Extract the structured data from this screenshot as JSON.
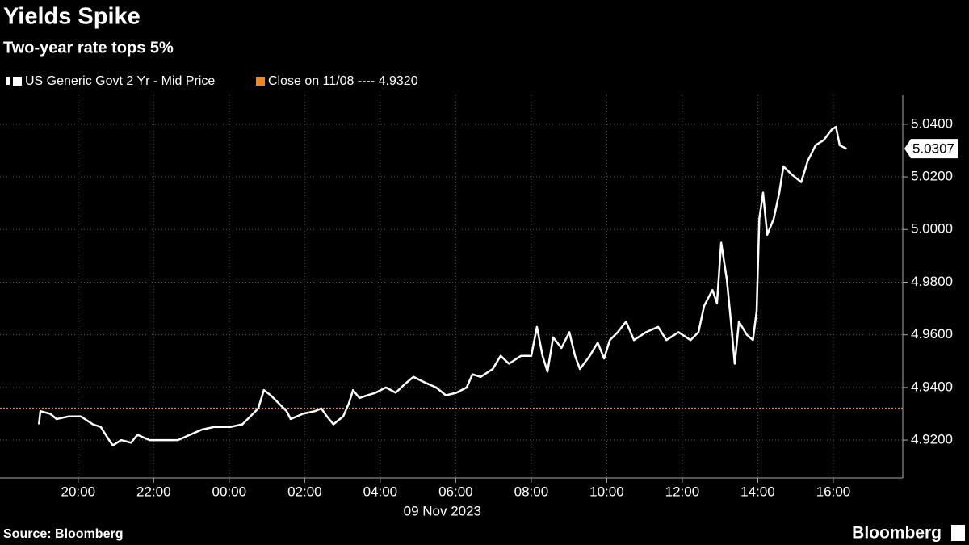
{
  "chart_data": {
    "type": "line",
    "title": "Yields Spike",
    "subtitle": "Two-year rate tops 5%",
    "date_label": "09 Nov 2023",
    "source": "Source: Bloomberg",
    "brand": "Bloomberg",
    "x": [
      18.96,
      19.0,
      19.26,
      19.43,
      19.75,
      20.07,
      20.39,
      20.6,
      20.82,
      20.92,
      21.14,
      21.4,
      21.57,
      21.89,
      22.21,
      22.64,
      22.96,
      23.28,
      23.6,
      24.03,
      24.35,
      24.56,
      24.77,
      24.92,
      25.1,
      25.31,
      25.52,
      25.63,
      25.95,
      26.27,
      26.44,
      26.59,
      26.76,
      27.02,
      27.17,
      27.28,
      27.45,
      27.66,
      27.88,
      28.15,
      28.41,
      28.63,
      28.88,
      29.16,
      29.48,
      29.74,
      30.02,
      30.29,
      30.44,
      30.66,
      30.98,
      31.19,
      31.41,
      31.73,
      32.0,
      32.15,
      32.3,
      32.43,
      32.58,
      32.8,
      33.01,
      33.16,
      33.29,
      33.55,
      33.76,
      33.93,
      34.08,
      34.29,
      34.51,
      34.72,
      35.04,
      35.36,
      35.58,
      35.9,
      36.22,
      36.43,
      36.58,
      36.8,
      36.92,
      37.03,
      37.18,
      37.29,
      37.39,
      37.5,
      37.71,
      37.87,
      37.97,
      38.04,
      38.14,
      38.25,
      38.42,
      38.57,
      38.68,
      38.89,
      39.15,
      39.32,
      39.53,
      39.75,
      39.96,
      40.07,
      40.17,
      40.35
    ],
    "series": [
      {
        "name": "US Generic Govt 2 Yr - Mid Price",
        "color": "#ffffff",
        "values": [
          4.926,
          4.931,
          4.93,
          4.928,
          4.929,
          4.929,
          4.926,
          4.925,
          4.92,
          4.918,
          4.92,
          4.919,
          4.922,
          4.92,
          4.92,
          4.92,
          4.922,
          4.924,
          4.925,
          4.925,
          4.926,
          4.929,
          4.932,
          4.939,
          4.937,
          4.934,
          4.931,
          4.928,
          4.93,
          4.931,
          4.932,
          4.929,
          4.926,
          4.929,
          4.934,
          4.939,
          4.936,
          4.937,
          4.938,
          4.94,
          4.938,
          4.941,
          4.944,
          4.942,
          4.94,
          4.937,
          4.938,
          4.94,
          4.945,
          4.944,
          4.947,
          4.952,
          4.949,
          4.952,
          4.952,
          4.963,
          4.952,
          4.946,
          4.959,
          4.955,
          4.961,
          4.952,
          4.947,
          4.952,
          4.957,
          4.951,
          4.958,
          4.961,
          4.965,
          4.958,
          4.961,
          4.963,
          4.958,
          4.961,
          4.958,
          4.961,
          4.971,
          4.977,
          4.972,
          4.995,
          4.981,
          4.965,
          4.949,
          4.965,
          4.96,
          4.958,
          4.969,
          5.004,
          5.014,
          4.998,
          5.004,
          5.014,
          5.024,
          5.021,
          5.018,
          5.026,
          5.032,
          5.034,
          5.038,
          5.039,
          5.032,
          5.0307
        ]
      }
    ],
    "last_value": 5.0307,
    "reference_line": {
      "name": "Close on 11/08 ---- 4.9320",
      "value": 4.932,
      "color": "#f0891c"
    },
    "xlim": [
      17.93,
      41.84
    ],
    "ylim": [
      4.9056,
      5.051
    ],
    "xticks": [
      {
        "value": 20,
        "label": "20:00"
      },
      {
        "value": 22,
        "label": "22:00"
      },
      {
        "value": 24,
        "label": "00:00"
      },
      {
        "value": 26,
        "label": "02:00"
      },
      {
        "value": 28,
        "label": "04:00"
      },
      {
        "value": 30,
        "label": "06:00"
      },
      {
        "value": 32,
        "label": "08:00"
      },
      {
        "value": 34,
        "label": "10:00"
      },
      {
        "value": 36,
        "label": "12:00"
      },
      {
        "value": 38,
        "label": "14:00"
      },
      {
        "value": 40,
        "label": "16:00"
      }
    ],
    "yticks": [
      {
        "value": 4.92,
        "label": "4.9200"
      },
      {
        "value": 4.94,
        "label": "4.9400"
      },
      {
        "value": 4.96,
        "label": "4.9600"
      },
      {
        "value": 4.98,
        "label": "4.9800"
      },
      {
        "value": 5.0,
        "label": "5.0000"
      },
      {
        "value": 5.02,
        "label": "5.0200"
      },
      {
        "value": 5.04,
        "label": "5.0400"
      }
    ],
    "grid": true
  }
}
